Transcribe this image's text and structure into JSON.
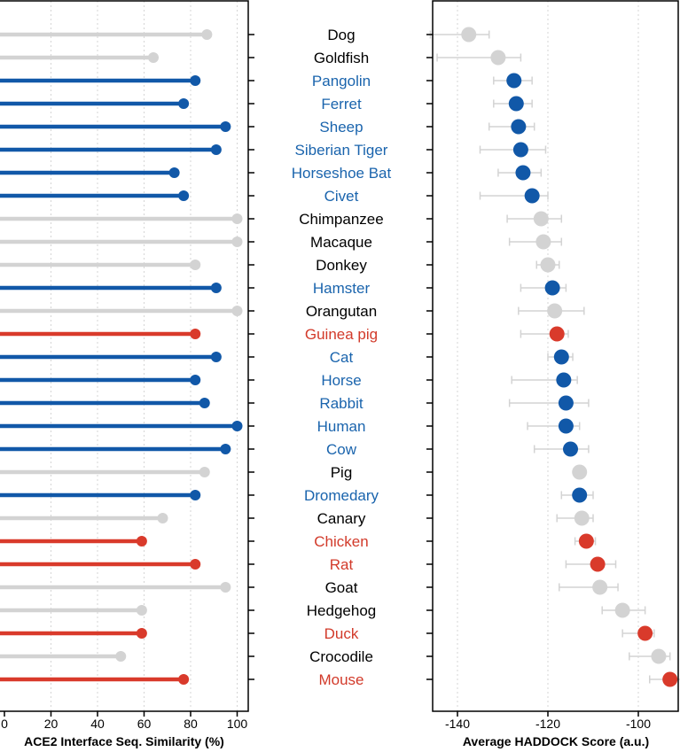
{
  "colors": {
    "gray": "#d3d3d3",
    "blue": "#1158a8",
    "red": "#d93a2b",
    "text_gray": "#000000",
    "text_blue": "#1a64ad",
    "text_red": "#d23a2a"
  },
  "chart_data": [
    {
      "type": "lollipop",
      "xlabel": "ACE2 Interface Seq. Similarity (%)",
      "xlim": [
        0,
        105
      ],
      "xticks": [
        0,
        20,
        40,
        60,
        80,
        100
      ],
      "grid": "vertical dotted",
      "categories": [
        "Dog",
        "Goldfish",
        "Pangolin",
        "Ferret",
        "Sheep",
        "Siberian Tiger",
        "Horseshoe Bat",
        "Civet",
        "Chimpanzee",
        "Macaque",
        "Donkey",
        "Hamster",
        "Orangutan",
        "Guinea pig",
        "Cat",
        "Horse",
        "Rabbit",
        "Human",
        "Cow",
        "Pig",
        "Dromedary",
        "Canary",
        "Chicken",
        "Rat",
        "Goat",
        "Hedgehog",
        "Duck",
        "Crocodile",
        "Mouse"
      ],
      "groups": [
        "gray",
        "gray",
        "blue",
        "blue",
        "blue",
        "blue",
        "blue",
        "blue",
        "gray",
        "gray",
        "gray",
        "blue",
        "gray",
        "red",
        "blue",
        "blue",
        "blue",
        "blue",
        "blue",
        "gray",
        "blue",
        "gray",
        "red",
        "red",
        "gray",
        "gray",
        "red",
        "gray",
        "red"
      ],
      "values": [
        87,
        64,
        82,
        77,
        95,
        91,
        73,
        77,
        100,
        100,
        82,
        91,
        100,
        82,
        91,
        82,
        86,
        100,
        95,
        86,
        82,
        68,
        59,
        82,
        95,
        59,
        59,
        50,
        77
      ]
    },
    {
      "type": "scatter_errorbar",
      "xlabel": "Average HADDOCK Score (a.u.)",
      "xlim": [
        -150,
        -88
      ],
      "xticks": [
        -140,
        -120,
        -100
      ],
      "grid": "vertical dotted",
      "categories": [
        "Dog",
        "Goldfish",
        "Pangolin",
        "Ferret",
        "Sheep",
        "Siberian Tiger",
        "Horseshoe Bat",
        "Civet",
        "Chimpanzee",
        "Macaque",
        "Donkey",
        "Hamster",
        "Orangutan",
        "Guinea pig",
        "Cat",
        "Horse",
        "Rabbit",
        "Human",
        "Cow",
        "Pig",
        "Dromedary",
        "Canary",
        "Chicken",
        "Rat",
        "Goat",
        "Hedgehog",
        "Duck",
        "Crocodile",
        "Mouse"
      ],
      "groups": [
        "gray",
        "gray",
        "blue",
        "blue",
        "blue",
        "blue",
        "blue",
        "blue",
        "gray",
        "gray",
        "gray",
        "blue",
        "gray",
        "red",
        "blue",
        "blue",
        "blue",
        "blue",
        "blue",
        "gray",
        "blue",
        "gray",
        "red",
        "red",
        "gray",
        "gray",
        "red",
        "gray",
        "red"
      ],
      "values": [
        -137.5,
        -131.0,
        -127.5,
        -127.0,
        -126.5,
        -126.0,
        -125.5,
        -123.5,
        -121.5,
        -121.0,
        -120.0,
        -119.0,
        -118.5,
        -118.0,
        -117.0,
        -116.5,
        -116.0,
        -116.0,
        -115.0,
        -113.0,
        -113.0,
        -112.5,
        -111.5,
        -109.0,
        -108.5,
        -103.5,
        -98.5,
        -95.5,
        -93.0
      ],
      "err_low": [
        -146.0,
        -144.5,
        -132.0,
        -132.0,
        -133.0,
        -135.0,
        -131.0,
        -135.0,
        -129.0,
        -128.5,
        -122.5,
        -126.0,
        -126.5,
        -126.0,
        -120.0,
        -128.0,
        -128.5,
        -124.5,
        -123.0,
        -113.0,
        -117.0,
        -118.0,
        -114.0,
        -116.0,
        -117.5,
        -108.0,
        -103.5,
        -102.0,
        -97.5
      ],
      "err_high": [
        -133.0,
        -126.0,
        -123.5,
        -123.5,
        -123.0,
        -120.5,
        -121.5,
        -120.0,
        -117.0,
        -117.0,
        -117.5,
        -116.0,
        -112.0,
        -115.5,
        -114.5,
        -113.5,
        -111.0,
        -113.0,
        -111.0,
        -113.0,
        -110.0,
        -110.0,
        -109.5,
        -105.0,
        -104.5,
        -98.5,
        -96.5,
        -93.0,
        -89.5
      ]
    }
  ]
}
